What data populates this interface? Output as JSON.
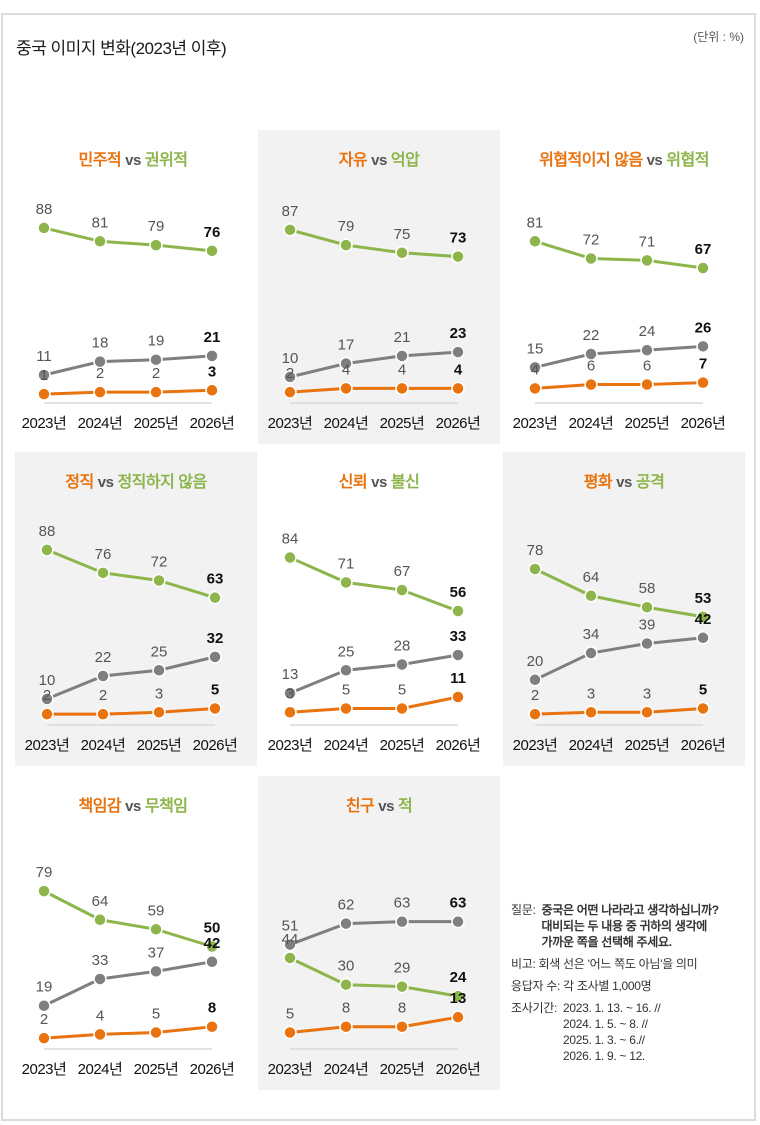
{
  "title": "중국 이미지 변화(2023년 이후)",
  "unit": "(단위 : %)",
  "colors": {
    "orange": "#e8730f",
    "green": "#8db54b",
    "gray": "#7f7f7f",
    "panel_bg": "#f2f2f2"
  },
  "chart_data": [
    {
      "type": "line",
      "title_a": "민주적",
      "vs": "vs",
      "title_b": "권위적",
      "categories": [
        "2023년",
        "2024년",
        "2025년",
        "2026년"
      ],
      "ylim": [
        0,
        100
      ],
      "series": [
        {
          "name": "권위적",
          "color": "green",
          "values": [
            88,
            81,
            79,
            76
          ]
        },
        {
          "name": "어느 쪽도 아님",
          "color": "gray",
          "values": [
            11,
            18,
            19,
            21
          ]
        },
        {
          "name": "민주적",
          "color": "orange",
          "values": [
            1,
            2,
            2,
            3
          ]
        }
      ]
    },
    {
      "type": "line",
      "title_a": "자유",
      "vs": "vs",
      "title_b": "억압",
      "categories": [
        "2023년",
        "2024년",
        "2025년",
        "2026년"
      ],
      "ylim": [
        0,
        100
      ],
      "series": [
        {
          "name": "억압",
          "color": "green",
          "values": [
            87,
            79,
            75,
            73
          ]
        },
        {
          "name": "어느 쪽도 아님",
          "color": "gray",
          "values": [
            10,
            17,
            21,
            23
          ]
        },
        {
          "name": "자유",
          "color": "orange",
          "values": [
            2,
            4,
            4,
            4
          ]
        }
      ]
    },
    {
      "type": "line",
      "title_a": "위협적이지 않음",
      "vs": "vs",
      "title_b": "위협적",
      "categories": [
        "2023년",
        "2024년",
        "2025년",
        "2026년"
      ],
      "ylim": [
        0,
        100
      ],
      "series": [
        {
          "name": "위협적",
          "color": "green",
          "values": [
            81,
            72,
            71,
            67
          ]
        },
        {
          "name": "어느 쪽도 아님",
          "color": "gray",
          "values": [
            15,
            22,
            24,
            26
          ]
        },
        {
          "name": "위협적이지 않음",
          "color": "orange",
          "values": [
            4,
            6,
            6,
            7
          ]
        }
      ]
    },
    {
      "type": "line",
      "title_a": "정직",
      "vs": "vs",
      "title_b": "정직하지 않음",
      "categories": [
        "2023년",
        "2024년",
        "2025년",
        "2026년"
      ],
      "ylim": [
        0,
        100
      ],
      "series": [
        {
          "name": "정직하지 않음",
          "color": "green",
          "values": [
            88,
            76,
            72,
            63
          ]
        },
        {
          "name": "어느 쪽도 아님",
          "color": "gray",
          "values": [
            10,
            22,
            25,
            32
          ]
        },
        {
          "name": "정직",
          "color": "orange",
          "values": [
            2,
            2,
            3,
            5
          ]
        }
      ]
    },
    {
      "type": "line",
      "title_a": "신뢰",
      "vs": "vs",
      "title_b": "불신",
      "categories": [
        "2023년",
        "2024년",
        "2025년",
        "2026년"
      ],
      "ylim": [
        0,
        100
      ],
      "series": [
        {
          "name": "불신",
          "color": "green",
          "values": [
            84,
            71,
            67,
            56
          ]
        },
        {
          "name": "어느 쪽도 아님",
          "color": "gray",
          "values": [
            13,
            25,
            28,
            33
          ]
        },
        {
          "name": "신뢰",
          "color": "orange",
          "values": [
            3,
            5,
            5,
            11
          ]
        }
      ]
    },
    {
      "type": "line",
      "title_a": "평화",
      "vs": "vs",
      "title_b": "공격",
      "categories": [
        "2023년",
        "2024년",
        "2025년",
        "2026년"
      ],
      "ylim": [
        0,
        100
      ],
      "series": [
        {
          "name": "공격",
          "color": "green",
          "values": [
            78,
            64,
            58,
            53
          ]
        },
        {
          "name": "어느 쪽도 아님",
          "color": "gray",
          "values": [
            20,
            34,
            39,
            42
          ]
        },
        {
          "name": "평화",
          "color": "orange",
          "values": [
            2,
            3,
            3,
            5
          ]
        }
      ]
    },
    {
      "type": "line",
      "title_a": "책임감",
      "vs": "vs",
      "title_b": "무책임",
      "categories": [
        "2023년",
        "2024년",
        "2025년",
        "2026년"
      ],
      "ylim": [
        0,
        100
      ],
      "series": [
        {
          "name": "무책임",
          "color": "green",
          "values": [
            79,
            64,
            59,
            50
          ]
        },
        {
          "name": "어느 쪽도 아님",
          "color": "gray",
          "values": [
            19,
            33,
            37,
            42
          ]
        },
        {
          "name": "책임감",
          "color": "orange",
          "values": [
            2,
            4,
            5,
            8
          ]
        }
      ]
    },
    {
      "type": "line",
      "title_a": "친구",
      "vs": "vs",
      "title_b": "적",
      "categories": [
        "2023년",
        "2024년",
        "2025년",
        "2026년"
      ],
      "ylim": [
        0,
        100
      ],
      "series": [
        {
          "name": "어느 쪽도 아님",
          "color": "gray",
          "values": [
            51,
            62,
            63,
            63
          ]
        },
        {
          "name": "적",
          "color": "green",
          "values": [
            44,
            30,
            29,
            24
          ]
        },
        {
          "name": "친구",
          "color": "orange",
          "values": [
            5,
            8,
            8,
            13
          ]
        }
      ]
    }
  ],
  "notes": {
    "question_label": "질문:",
    "question_text": "중국은 어떤 나라라고 생각하십니까?\n대비되는 두 내용 중 귀하의 생각에\n가까운 쪽을 선택해 주세요.",
    "remark": "비고: 회색 선은 '어느 쪽도 아님'을 의미",
    "respondents": "응답자 수: 각 조사별 1,000명",
    "period_label": "조사기간:",
    "period_text": "2023. 1. 13. ~ 16. //\n2024. 1. 5. ~ 8. //\n2025. 1. 3. ~ 6.//\n2026. 1. 9. ~ 12."
  }
}
